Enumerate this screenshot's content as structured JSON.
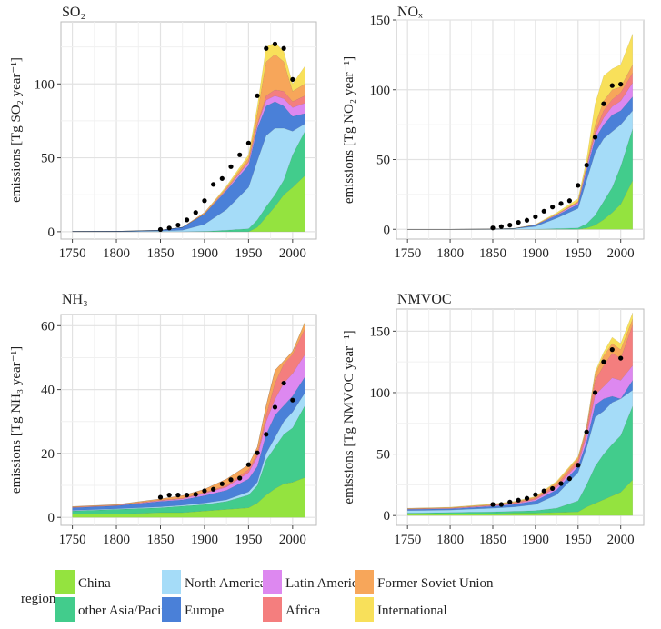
{
  "chart_data": {
    "type": "area",
    "stacked": true,
    "grid": true,
    "legend": {
      "title": "region",
      "placement": "bottom"
    },
    "regions": [
      "China",
      "other Asia/Pacific",
      "North America",
      "Europe",
      "Latin America",
      "Africa",
      "Former Soviet Union",
      "International"
    ],
    "colors": [
      "#94e33f",
      "#42cc8c",
      "#a5dcf8",
      "#4a80d8",
      "#dd88f0",
      "#f47e7e",
      "#f7a65a",
      "#f8e05a"
    ],
    "x": [
      1750,
      1800,
      1850,
      1875,
      1900,
      1925,
      1950,
      1960,
      1970,
      1980,
      1990,
      2000,
      2014
    ],
    "x_ticks": [
      "1750",
      "1800",
      "1850",
      "1900",
      "1950",
      "2000"
    ],
    "dot_x": [
      1850,
      1860,
      1870,
      1880,
      1890,
      1900,
      1910,
      1920,
      1930,
      1940,
      1950,
      1960,
      1970,
      1980,
      1990,
      2000
    ],
    "panels": [
      {
        "title": "SO₂",
        "ylabel": "emissions [Tg SO₂ year⁻¹]",
        "ylim": [
          -5,
          142
        ],
        "y_ticks": [
          "0",
          "50",
          "100"
        ],
        "series": [
          {
            "name": "China",
            "values": [
              0,
              0,
              0,
              0,
              0,
              0,
              0,
              3,
              10,
              17,
              25,
              30,
              38
            ]
          },
          {
            "name": "other Asia/Pacific",
            "values": [
              0,
              0,
              0,
              0,
              0.2,
              1,
              2,
              5,
              7,
              8,
              10,
              22,
              30
            ]
          },
          {
            "name": "North America",
            "values": [
              0,
              0,
              0.5,
              1,
              4.8,
              14,
              28,
              40,
              48,
              45,
              35,
              16,
              5
            ]
          },
          {
            "name": "Europe",
            "values": [
              0.2,
              0.3,
              0.5,
              2,
              7,
              13,
              15,
              22,
              20,
              18,
              15,
              10,
              7
            ]
          },
          {
            "name": "Latin America",
            "values": [
              0,
              0,
              0,
              0,
              0,
              0.5,
              2,
              2,
              4,
              4,
              5,
              6,
              7
            ]
          },
          {
            "name": "Africa",
            "values": [
              0,
              0,
              0,
              0,
              0,
              0.5,
              0.5,
              1,
              3,
              4,
              5,
              4,
              5
            ]
          },
          {
            "name": "Former Soviet Union",
            "values": [
              0,
              0,
              0,
              0,
              1,
              1,
              2.5,
              7,
              23,
              24,
              20,
              7,
              8
            ]
          },
          {
            "name": "International",
            "values": [
              0,
              0,
              0,
              0,
              0,
              1,
              2,
              5,
              10,
              8,
              7,
              5,
              12
            ]
          }
        ],
        "dots": [
          1.5,
          2.5,
          4.5,
          8,
          13,
          21,
          32,
          36,
          44,
          52,
          60,
          92,
          124,
          127,
          124,
          103
        ]
      },
      {
        "title": "NOₓ",
        "ylabel": "emissions [Tg NO₂ year⁻¹]",
        "ylim": [
          -7,
          150
        ],
        "y_ticks": [
          "0",
          "50",
          "100",
          "150"
        ],
        "series": [
          {
            "name": "China",
            "values": [
              0,
              0,
              0,
              0,
              0,
              0,
              0,
              1,
              3,
              7,
              12,
              18,
              35
            ]
          },
          {
            "name": "other Asia/Pacific",
            "values": [
              0,
              0,
              0,
              0,
              0.1,
              0.5,
              1,
              3,
              7,
              13,
              18,
              27,
              37
            ]
          },
          {
            "name": "North America",
            "values": [
              0,
              0,
              0.2,
              0.5,
              1.9,
              7.5,
              14,
              31,
              45,
              45,
              40,
              30,
              13
            ]
          },
          {
            "name": "Europe",
            "values": [
              0,
              0,
              0,
              0.1,
              1,
              2,
              3,
              7,
              10,
              10,
              12,
              10,
              10
            ]
          },
          {
            "name": "Latin America",
            "values": [
              0,
              0,
              0,
              0,
              0.1,
              0.5,
              1,
              2,
              3,
              5,
              6,
              7,
              10
            ]
          },
          {
            "name": "Africa",
            "values": [
              0,
              0,
              0,
              0,
              0.1,
              0.2,
              0.5,
              1,
              2,
              5,
              5,
              6,
              7
            ]
          },
          {
            "name": "Former Soviet Union",
            "values": [
              0,
              0,
              0,
              0,
              0.1,
              0.3,
              0.5,
              1,
              5,
              7,
              7,
              4,
              6
            ]
          },
          {
            "name": "International",
            "values": [
              0,
              0,
              0,
              0,
              0.2,
              1,
              2,
              4,
              15,
              18,
              15,
              16,
              22
            ]
          }
        ],
        "dots": [
          1,
          2,
          3,
          5,
          6.5,
          9,
          13,
          16,
          18.5,
          20.5,
          31.5,
          46,
          66,
          90,
          103,
          104
        ]
      },
      {
        "title": "NH₃",
        "ylabel": "emissions [Tg NH₃ year⁻¹]",
        "ylim": [
          -2.5,
          63.5
        ],
        "y_ticks": [
          "0",
          "20",
          "40",
          "60"
        ],
        "series": [
          {
            "name": "China",
            "values": [
              1,
              1,
              1.5,
              1.5,
              2,
              2.5,
              3,
              4.5,
              7,
              9,
              10.5,
              11,
              12.5
            ]
          },
          {
            "name": "other Asia/Pacific",
            "values": [
              1,
              1.5,
              1.5,
              2,
              2,
              2.5,
              4,
              5.5,
              11,
              13,
              15.5,
              17,
              22.5
            ]
          },
          {
            "name": "North America",
            "values": [
              0.2,
              0.2,
              0.3,
              0.3,
              0.5,
              0.5,
              1,
              1,
              2,
              3,
              4,
              5,
              4
            ]
          },
          {
            "name": "Europe",
            "values": [
              0.8,
              0.9,
              1.7,
              1.7,
              2.3,
              3,
              4,
              5,
              6,
              7,
              5,
              5,
              5
            ]
          },
          {
            "name": "Latin America",
            "values": [
              0.1,
              0.1,
              0.2,
              0.3,
              0.7,
              1,
              2,
              3,
              4,
              5,
              7,
              7,
              7
            ]
          },
          {
            "name": "Africa",
            "values": [
              0.1,
              0.1,
              0.2,
              0.2,
              0.3,
              0.5,
              1,
              1,
              2,
              5,
              6,
              6,
              8
            ]
          },
          {
            "name": "Former Soviet Union",
            "values": [
              0.2,
              0.2,
              0.4,
              0.8,
              1,
              2,
              1.5,
              2,
              3,
              4,
              1,
              1,
              2
            ]
          },
          {
            "name": "International",
            "values": [
              0,
              0,
              0,
              0,
              0,
              0,
              0,
              0,
              0,
              0,
              0,
              0,
              0.2
            ]
          }
        ],
        "dots": [
          6.3,
          7,
          7,
          7,
          7.2,
          8.3,
          8.8,
          10.5,
          11.8,
          12.3,
          16.5,
          20.2,
          26,
          34.5,
          42,
          36.7
        ]
      },
      {
        "title": "NMVOC",
        "ylabel": "emissions [Tg NMVOC year⁻¹]",
        "ylim": [
          -8,
          168
        ],
        "y_ticks": [
          "0",
          "50",
          "100",
          "150"
        ],
        "series": [
          {
            "name": "China",
            "values": [
              1,
              1,
              1.5,
              2,
              2,
              2.5,
              3,
              7,
              10,
              13,
              16,
              19,
              29
            ]
          },
          {
            "name": "other Asia/Pacific",
            "values": [
              1,
              1.5,
              1.5,
              1.5,
              2,
              3.5,
              9,
              18,
              30,
              37,
              42,
              46,
              60
            ]
          },
          {
            "name": "North America",
            "values": [
              2,
              2,
              3,
              3.5,
              5,
              11,
              23,
              30,
              40,
              35,
              34,
              30,
              13
            ]
          },
          {
            "name": "Europe",
            "values": [
              1,
              1,
              1.5,
              2,
              3,
              4,
              5,
              5,
              10,
              10,
              5,
              0,
              8
            ]
          },
          {
            "name": "Latin America",
            "values": [
              0.2,
              0.3,
              0.5,
              0.5,
              1,
              2,
              2,
              5,
              8,
              10,
              15,
              15,
              12
            ]
          },
          {
            "name": "Africa",
            "values": [
              0.3,
              0.2,
              0.5,
              1,
              1,
              2,
              3,
              5,
              12,
              17,
              20,
              18,
              33
            ]
          },
          {
            "name": "Former Soviet Union",
            "values": [
              0.3,
              0.5,
              0.5,
              0.5,
              1,
              2,
              2,
              2,
              5,
              8,
              8,
              7,
              5
            ]
          },
          {
            "name": "International",
            "values": [
              0.2,
              0.3,
              0.5,
              0.5,
              0.5,
              1,
              1,
              1,
              2,
              3,
              5,
              5,
              5
            ]
          }
        ],
        "dots": [
          9,
          9,
          11,
          12.5,
          14,
          17,
          20,
          22,
          26,
          30,
          41,
          68,
          100,
          125,
          135,
          128
        ]
      }
    ]
  }
}
